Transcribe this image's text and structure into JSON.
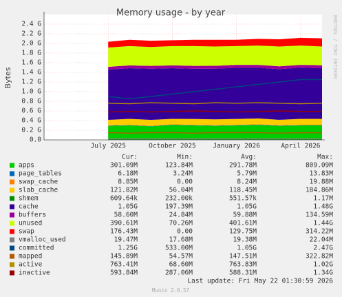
{
  "chart_data": {
    "type": "area",
    "title": "Memory usage - by year",
    "y_label": "Bytes",
    "watermark": "RRDTOOL / TOBI OETIKER",
    "x": [
      "2025-07",
      "2025-08",
      "2025-09",
      "2025-10",
      "2025-11",
      "2025-12",
      "2026-01",
      "2026-02",
      "2026-03",
      "2026-04",
      "2026-05"
    ],
    "xlim": [
      "2025-04",
      "2026-05"
    ],
    "xticks": [
      {
        "value": "2025-07",
        "label": "July 2025"
      },
      {
        "value": "2025-10",
        "label": "October 2025"
      },
      {
        "value": "2026-01",
        "label": "January 2026"
      },
      {
        "value": "2026-04",
        "label": "April 2026"
      }
    ],
    "ylim": [
      0,
      2.6
    ],
    "yticks": [
      {
        "value": 0,
        "label": "0.0"
      },
      {
        "value": 0.2,
        "label": "0.2 G"
      },
      {
        "value": 0.4,
        "label": "0.4 G"
      },
      {
        "value": 0.6,
        "label": "0.6 G"
      },
      {
        "value": 0.8,
        "label": "0.8 G"
      },
      {
        "value": 1.0,
        "label": "1.0 G"
      },
      {
        "value": 1.2,
        "label": "1.2 G"
      },
      {
        "value": 1.4,
        "label": "1.4 G"
      },
      {
        "value": 1.6,
        "label": "1.6 G"
      },
      {
        "value": 1.8,
        "label": "1.8 G"
      },
      {
        "value": 2.0,
        "label": "2.0 G"
      },
      {
        "value": 2.2,
        "label": "2.2 G"
      },
      {
        "value": 2.4,
        "label": "2.4 G"
      }
    ],
    "grid": true,
    "series": [
      {
        "name": "apps",
        "color": "#00cc00",
        "style": "area",
        "values": [
          0.29,
          0.3,
          0.28,
          0.31,
          0.3,
          0.29,
          0.3,
          0.31,
          0.29,
          0.3,
          0.3
        ]
      },
      {
        "name": "page_tables",
        "color": "#0066b3",
        "style": "area",
        "values": [
          0.006,
          0.006,
          0.006,
          0.006,
          0.006,
          0.006,
          0.006,
          0.006,
          0.006,
          0.006,
          0.006
        ]
      },
      {
        "name": "swap_cache",
        "color": "#ff8000",
        "style": "area",
        "values": [
          0.008,
          0.009,
          0.008,
          0.009,
          0.008,
          0.009,
          0.008,
          0.009,
          0.009,
          0.009,
          0.009
        ]
      },
      {
        "name": "slab_cache",
        "color": "#ffcc00",
        "style": "area",
        "values": [
          0.11,
          0.12,
          0.12,
          0.11,
          0.12,
          0.12,
          0.12,
          0.12,
          0.11,
          0.12,
          0.12
        ]
      },
      {
        "name": "shmem",
        "color": "#008f00",
        "style": "area",
        "values": [
          0.0005,
          0.0005,
          0.0005,
          0.0005,
          0.0005,
          0.0005,
          0.0005,
          0.0005,
          0.0006,
          0.0006,
          0.0006
        ]
      },
      {
        "name": "cache",
        "color": "#330099",
        "style": "area",
        "values": [
          1.04,
          1.05,
          1.06,
          1.05,
          1.04,
          1.05,
          1.06,
          1.05,
          1.05,
          1.06,
          1.05
        ]
      },
      {
        "name": "buffers",
        "color": "#990099",
        "style": "area",
        "values": [
          0.06,
          0.06,
          0.06,
          0.06,
          0.06,
          0.06,
          0.06,
          0.06,
          0.06,
          0.06,
          0.06
        ]
      },
      {
        "name": "unused",
        "color": "#ccff00",
        "style": "area",
        "values": [
          0.4,
          0.4,
          0.39,
          0.4,
          0.41,
          0.4,
          0.39,
          0.4,
          0.41,
          0.4,
          0.39
        ]
      },
      {
        "name": "swap",
        "color": "#ff0000",
        "style": "area",
        "values": [
          0.12,
          0.13,
          0.13,
          0.12,
          0.13,
          0.14,
          0.13,
          0.14,
          0.15,
          0.16,
          0.17
        ]
      },
      {
        "name": "vmalloc_used",
        "color": "#808080",
        "style": "line",
        "values": [
          0.019,
          0.019,
          0.019,
          0.019,
          0.019,
          0.019,
          0.019,
          0.019,
          0.019,
          0.019,
          0.019
        ]
      },
      {
        "name": "committed",
        "color": "#00487d",
        "style": "line",
        "values": [
          0.9,
          0.85,
          0.9,
          0.95,
          1.0,
          1.05,
          1.1,
          1.15,
          1.2,
          1.25,
          1.25
        ]
      },
      {
        "name": "mapped",
        "color": "#b35a00",
        "style": "line",
        "values": [
          0.15,
          0.14,
          0.15,
          0.15,
          0.14,
          0.15,
          0.15,
          0.15,
          0.14,
          0.15,
          0.146
        ]
      },
      {
        "name": "active",
        "color": "#b38f00",
        "style": "line",
        "values": [
          0.76,
          0.75,
          0.77,
          0.76,
          0.75,
          0.77,
          0.76,
          0.77,
          0.76,
          0.75,
          0.76
        ]
      },
      {
        "name": "inactive",
        "color": "#990000",
        "style": "line",
        "values": [
          0.58,
          0.59,
          0.58,
          0.59,
          0.6,
          0.59,
          0.58,
          0.59,
          0.6,
          0.59,
          0.59
        ]
      }
    ],
    "summary": {
      "columns": [
        "Cur:",
        "Min:",
        "Avg:",
        "Max:"
      ],
      "rows": [
        [
          "301.09M",
          "123.84M",
          "291.78M",
          "809.09M"
        ],
        [
          "6.18M",
          "3.24M",
          "5.79M",
          "13.83M"
        ],
        [
          "8.85M",
          "0.00",
          "8.24M",
          "19.88M"
        ],
        [
          "121.82M",
          "56.04M",
          "118.45M",
          "184.86M"
        ],
        [
          "609.64k",
          "232.00k",
          "551.57k",
          "1.17M"
        ],
        [
          "1.05G",
          "197.39M",
          "1.05G",
          "1.48G"
        ],
        [
          "58.60M",
          "24.84M",
          "59.88M",
          "134.59M"
        ],
        [
          "390.61M",
          "70.26M",
          "401.61M",
          "1.44G"
        ],
        [
          "176.43M",
          "0.00",
          "129.75M",
          "314.22M"
        ],
        [
          "19.47M",
          "17.68M",
          "19.38M",
          "22.04M"
        ],
        [
          "1.25G",
          "533.00M",
          "1.05G",
          "2.47G"
        ],
        [
          "145.89M",
          "54.57M",
          "147.51M",
          "322.82M"
        ],
        [
          "763.41M",
          "68.60M",
          "763.83M",
          "1.02G"
        ],
        [
          "593.84M",
          "287.06M",
          "588.31M",
          "1.34G"
        ]
      ]
    },
    "last_update": "Last update: Fri May 22 01:30:59 2026",
    "footer": "Munin 2.0.57"
  }
}
